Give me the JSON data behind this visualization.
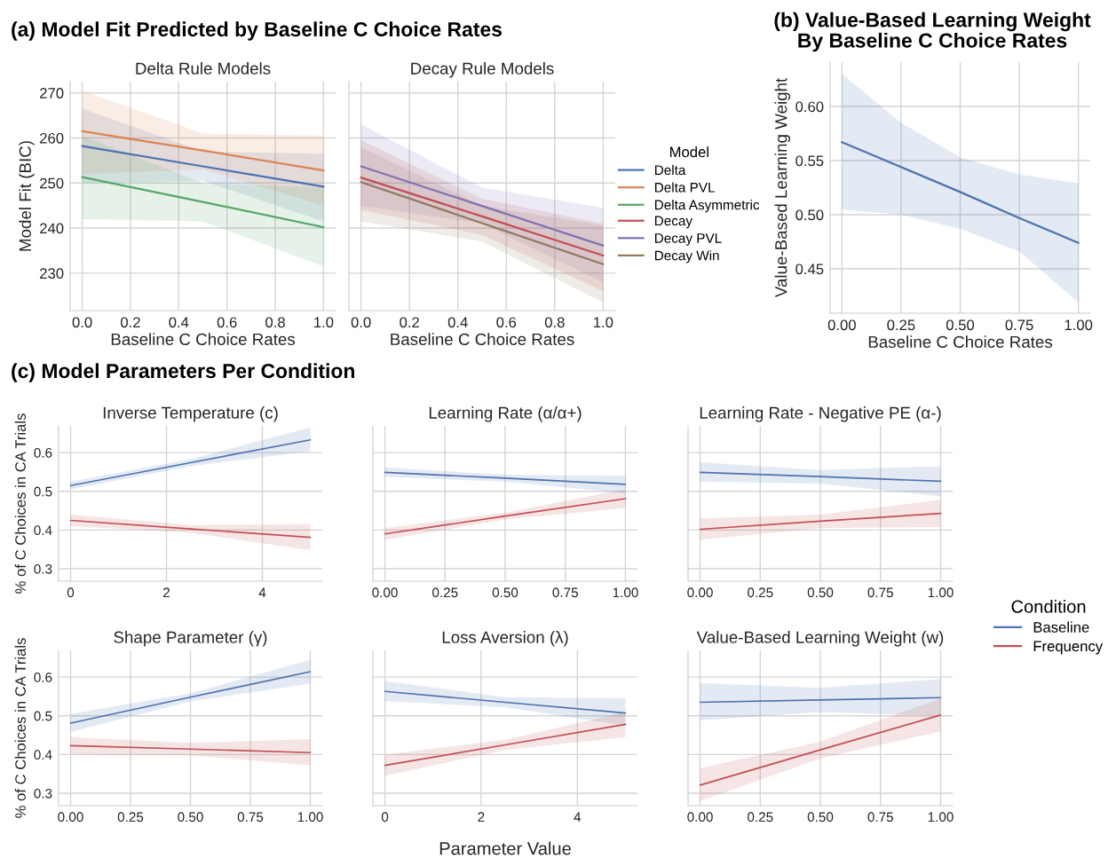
{
  "chart_data": [
    {
      "type": "line",
      "title": "(a) Model Fit Predicted by Baseline C Choice Rates",
      "subtitle": "Delta Rule Models",
      "xlabel": "Baseline C Choice Rates",
      "ylabel": "Model Fit (BIC)",
      "legend_title": "Model",
      "legend": "right",
      "x": [
        0,
        0.5,
        1
      ],
      "xlim": [
        -0.05,
        1.05
      ],
      "ylim": [
        221.7,
        272.5
      ],
      "yticks": [
        230,
        240,
        250,
        260,
        270
      ],
      "grid": true,
      "xticks": [
        {
          "value": 0,
          "label": "0.0"
        },
        {
          "value": 0.2,
          "label": "0.2"
        },
        {
          "value": 0.4,
          "label": "0.4"
        },
        {
          "value": 0.6,
          "label": "0.6"
        },
        {
          "value": 0.8,
          "label": "0.8"
        },
        {
          "value": 1,
          "label": "1.0"
        }
      ],
      "series": [
        {
          "name": "Delta",
          "color": "#4c72b0",
          "values": [
            258.2,
            253.7,
            249.2
          ],
          "lower": [
            250,
            250.5,
            241.5
          ],
          "upper": [
            266.5,
            257,
            256.5
          ]
        },
        {
          "name": "Delta PVL",
          "color": "#dd8452",
          "values": [
            261.5,
            257.2,
            252.8
          ],
          "lower": [
            252,
            253,
            245
          ],
          "upper": [
            270.5,
            261,
            260.5
          ]
        },
        {
          "name": "Delta Asymmetric",
          "color": "#55a868",
          "values": [
            251.3,
            245.8,
            240.2
          ],
          "lower": [
            242,
            241.5,
            231.5
          ],
          "upper": [
            260.5,
            250,
            249
          ]
        }
      ]
    },
    {
      "type": "line",
      "subtitle": "Decay Rule Models",
      "xlabel": "Baseline C Choice Rates",
      "legend": "right",
      "tick_labels": "x",
      "x": [
        0,
        0.5,
        1
      ],
      "xlim": [
        -0.05,
        1.05
      ],
      "ylim": [
        221.7,
        272.5
      ],
      "grid": true,
      "xticks": [
        {
          "value": 0,
          "label": "0.0"
        },
        {
          "value": 0.2,
          "label": "0.2"
        },
        {
          "value": 0.4,
          "label": "0.4"
        },
        {
          "value": 0.6,
          "label": "0.6"
        },
        {
          "value": 0.8,
          "label": "0.8"
        },
        {
          "value": 1,
          "label": "1.0"
        }
      ],
      "series": [
        {
          "name": "Decay",
          "color": "#c44e52",
          "values": [
            251.2,
            242.6,
            233.9
          ],
          "lower": [
            244,
            238.5,
            226
          ],
          "upper": [
            259.5,
            246.5,
            241
          ]
        },
        {
          "name": "Decay PVL",
          "color": "#8172b3",
          "values": [
            253.7,
            244.9,
            236.1
          ],
          "lower": [
            245,
            241,
            228
          ],
          "upper": [
            263,
            249,
            244.5
          ]
        },
        {
          "name": "Decay Win",
          "color": "#937860",
          "values": [
            250.2,
            241.1,
            232.0
          ],
          "lower": [
            241.5,
            237,
            223.5
          ],
          "upper": [
            258,
            245,
            240.5
          ]
        }
      ]
    },
    {
      "type": "line",
      "title": "(b) Value-Based Learning Weight\nBy Baseline C Choice Rates",
      "xlabel": "Baseline C Choice Rates",
      "ylabel": "Value-Based Learning Weight",
      "x": [
        0,
        0.25,
        0.5,
        0.75,
        1
      ],
      "xlim": [
        -0.05,
        1.05
      ],
      "ylim": [
        0.409,
        0.641
      ],
      "grid": true,
      "xticks": [
        {
          "value": 0,
          "label": "0.00"
        },
        {
          "value": 0.25,
          "label": "0.25"
        },
        {
          "value": 0.5,
          "label": "0.50"
        },
        {
          "value": 0.75,
          "label": "0.75"
        },
        {
          "value": 1,
          "label": "1.00"
        }
      ],
      "yticks": [
        {
          "value": 0.45,
          "label": "0.45"
        },
        {
          "value": 0.5,
          "label": "0.50"
        },
        {
          "value": 0.55,
          "label": "0.55"
        },
        {
          "value": 0.6,
          "label": "0.60"
        }
      ],
      "series": [
        {
          "color": "#4c72b0",
          "values": [
            0.567,
            0.544,
            0.521,
            0.497,
            0.474
          ],
          "lower": [
            0.505,
            0.5,
            0.487,
            0.466,
            0.419
          ],
          "upper": [
            0.63,
            0.585,
            0.553,
            0.537,
            0.529
          ]
        }
      ]
    },
    {
      "type": "line",
      "title": "(c) Model Parameters Per Condition",
      "subtitle": "Inverse Temperature (c)",
      "ylabel": "% of C Choices in CA Trials",
      "legend_title": "Condition",
      "legend": "right",
      "x": [
        0,
        2.5,
        5
      ],
      "xlim": [
        -0.25,
        5.25
      ],
      "ylim": [
        0.268,
        0.669
      ],
      "xticks": [
        0,
        2,
        4
      ],
      "yticks": [
        0.3,
        0.4,
        0.5,
        0.6
      ],
      "grid": true,
      "series": [
        {
          "name": "Baseline",
          "color": "#4c72b0",
          "values": [
            0.515,
            0.574,
            0.633
          ],
          "lower": [
            0.505,
            0.565,
            0.603
          ],
          "upper": [
            0.525,
            0.583,
            0.665
          ]
        },
        {
          "name": "Frequency",
          "color": "#c44e52",
          "values": [
            0.425,
            0.403,
            0.381
          ],
          "lower": [
            0.41,
            0.393,
            0.348
          ],
          "upper": [
            0.44,
            0.413,
            0.415
          ]
        }
      ]
    },
    {
      "type": "line",
      "subtitle": "Learning Rate (α/α+)",
      "tick_labels": "x",
      "x": [
        0,
        0.5,
        1
      ],
      "xlim": [
        -0.05,
        1.05
      ],
      "ylim": [
        0.268,
        0.669
      ],
      "yticks": [
        0.3,
        0.4,
        0.5,
        0.6
      ],
      "grid": true,
      "xticks": [
        {
          "value": 0,
          "label": "0.00"
        },
        {
          "value": 0.25,
          "label": "0.25"
        },
        {
          "value": 0.5,
          "label": "0.50"
        },
        {
          "value": 0.75,
          "label": "0.75"
        },
        {
          "value": 1,
          "label": "1.00"
        }
      ],
      "series": [
        {
          "color": "#4c72b0",
          "values": [
            0.549,
            0.534,
            0.518
          ],
          "lower": [
            0.537,
            0.525,
            0.495
          ],
          "upper": [
            0.562,
            0.543,
            0.54
          ]
        },
        {
          "color": "#c44e52",
          "values": [
            0.39,
            0.436,
            0.481
          ],
          "lower": [
            0.375,
            0.427,
            0.457
          ],
          "upper": [
            0.405,
            0.445,
            0.505
          ]
        }
      ]
    },
    {
      "type": "line",
      "subtitle": "Learning Rate - Negative PE (α-)",
      "tick_labels": "x",
      "x": [
        0,
        0.5,
        1
      ],
      "xlim": [
        -0.05,
        1.05
      ],
      "ylim": [
        0.268,
        0.669
      ],
      "yticks": [
        0.3,
        0.4,
        0.5,
        0.6
      ],
      "grid": true,
      "xticks": [
        {
          "value": 0,
          "label": "0.00"
        },
        {
          "value": 0.25,
          "label": "0.25"
        },
        {
          "value": 0.5,
          "label": "0.50"
        },
        {
          "value": 0.75,
          "label": "0.75"
        },
        {
          "value": 1,
          "label": "1.00"
        }
      ],
      "series": [
        {
          "color": "#4c72b0",
          "values": [
            0.549,
            0.538,
            0.526
          ],
          "lower": [
            0.525,
            0.52,
            0.487
          ],
          "upper": [
            0.575,
            0.555,
            0.565
          ]
        },
        {
          "color": "#c44e52",
          "values": [
            0.402,
            0.423,
            0.443
          ],
          "lower": [
            0.375,
            0.405,
            0.408
          ],
          "upper": [
            0.43,
            0.44,
            0.478
          ]
        }
      ]
    },
    {
      "type": "line",
      "subtitle": "Shape Parameter (γ)",
      "ylabel": "% of C Choices in CA Trials",
      "x": [
        0,
        0.5,
        1
      ],
      "xlim": [
        -0.05,
        1.05
      ],
      "ylim": [
        0.268,
        0.669
      ],
      "yticks": [
        0.3,
        0.4,
        0.5,
        0.6
      ],
      "grid": true,
      "xticks": [
        {
          "value": 0,
          "label": "0.00"
        },
        {
          "value": 0.25,
          "label": "0.25"
        },
        {
          "value": 0.5,
          "label": "0.50"
        },
        {
          "value": 0.75,
          "label": "0.75"
        },
        {
          "value": 1,
          "label": "1.00"
        }
      ],
      "series": [
        {
          "color": "#4c72b0",
          "values": [
            0.481,
            0.548,
            0.614
          ],
          "lower": [
            0.458,
            0.537,
            0.583
          ],
          "upper": [
            0.505,
            0.558,
            0.645
          ]
        },
        {
          "color": "#c44e52",
          "values": [
            0.423,
            0.414,
            0.405
          ],
          "lower": [
            0.4,
            0.398,
            0.372
          ],
          "upper": [
            0.445,
            0.43,
            0.44
          ]
        }
      ]
    },
    {
      "type": "line",
      "subtitle": "Loss Aversion (λ)",
      "xlabel": "Parameter Value",
      "tick_labels": "x",
      "x": [
        0,
        2.5,
        5
      ],
      "xlim": [
        -0.25,
        5.25
      ],
      "ylim": [
        0.268,
        0.669
      ],
      "xticks": [
        0,
        2,
        4
      ],
      "yticks": [
        0.3,
        0.4,
        0.5,
        0.6
      ],
      "grid": true,
      "series": [
        {
          "color": "#4c72b0",
          "values": [
            0.563,
            0.535,
            0.507
          ],
          "lower": [
            0.538,
            0.522,
            0.475
          ],
          "upper": [
            0.59,
            0.548,
            0.545
          ]
        },
        {
          "color": "#c44e52",
          "values": [
            0.372,
            0.425,
            0.478
          ],
          "lower": [
            0.345,
            0.412,
            0.445
          ],
          "upper": [
            0.4,
            0.438,
            0.51
          ]
        }
      ]
    },
    {
      "type": "line",
      "subtitle": "Value-Based Learning Weight (w)",
      "tick_labels": "x",
      "x": [
        0,
        0.5,
        1
      ],
      "xlim": [
        -0.05,
        1.05
      ],
      "ylim": [
        0.268,
        0.669
      ],
      "yticks": [
        0.3,
        0.4,
        0.5,
        0.6
      ],
      "grid": true,
      "xticks": [
        {
          "value": 0,
          "label": "0.00"
        },
        {
          "value": 0.25,
          "label": "0.25"
        },
        {
          "value": 0.5,
          "label": "0.50"
        },
        {
          "value": 0.75,
          "label": "0.75"
        },
        {
          "value": 1,
          "label": "1.00"
        }
      ],
      "series": [
        {
          "color": "#4c72b0",
          "values": [
            0.535,
            0.541,
            0.547
          ],
          "lower": [
            0.488,
            0.51,
            0.5
          ],
          "upper": [
            0.585,
            0.572,
            0.595
          ]
        },
        {
          "color": "#c44e52",
          "values": [
            0.321,
            0.412,
            0.502
          ],
          "lower": [
            0.28,
            0.39,
            0.46
          ],
          "upper": [
            0.365,
            0.433,
            0.545
          ]
        }
      ]
    }
  ]
}
